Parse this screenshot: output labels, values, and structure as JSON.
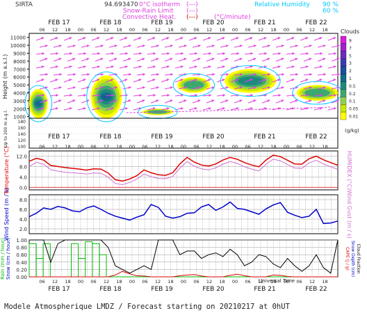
{
  "header": {
    "station": "SIRTA",
    "coords": "94.693470",
    "isotherm_label": "0°C isotherm",
    "snow_rain_label": "Snow-Rain Limit",
    "convective_label": "Convective Heat.",
    "unit_label": "(°C/minute)",
    "rh_label": "Relative Humidity",
    "rh_90": "90 %",
    "rh_60": "60 %",
    "iso_legend": "(---)",
    "snow_legend": "(---)",
    "conv_legend": "(---)"
  },
  "footer": {
    "title": "Modele Atmospherique LMDZ / Forecast starting on 20210217 at 0hUT",
    "universal_time": "Universal Time"
  },
  "colors": {
    "cloud_scale": [
      "#ffff00",
      "#c8e600",
      "#8fd14f",
      "#3da86e",
      "#1e8a7e",
      "#136b8c",
      "#1c4fa0",
      "#3b3bb0",
      "#6a2bbd",
      "#a020c8",
      "#d61ed6"
    ],
    "temperature": "#dd0000",
    "humidex": "#d070d0",
    "wind_speed": "#0000cc",
    "rain": "#00bb00",
    "cape": "#dd0000",
    "cloud_fraction": "#000000",
    "wind_arrow": "#e040e0",
    "rh_contour": "#00c8ff"
  },
  "chart_data": [
    {
      "type": "heatmap",
      "title": "",
      "days": [
        "FEB 17",
        "FEB 18",
        "FEB 19",
        "FEB 20",
        "FEB 21",
        "FEB 22"
      ],
      "hour_ticks": [
        "06",
        "12",
        "18",
        "00",
        "06",
        "12",
        "18",
        "00",
        "06",
        "12",
        "18",
        "00",
        "06",
        "12",
        "18",
        "00",
        "06",
        "12",
        "18",
        "00",
        "06",
        "12",
        "18"
      ],
      "ylabel": "Height (m a.s.l.)",
      "ylabel_low": "Up to 200 m a.g.l.",
      "yticks_upper": [
        11000,
        10000,
        9000,
        8000,
        7000,
        6000,
        5000,
        4000,
        3000,
        2000,
        1000
      ],
      "yticks_lower": [
        180,
        160,
        140,
        120,
        100
      ],
      "colorbar_title": "Clouds",
      "colorbar_unit": "(g/kg)",
      "colorbar_levels": [
        "9",
        "7",
        "5",
        "3",
        "2",
        "1",
        "0.5",
        "0.2",
        "0.1",
        "0.05",
        "0.01"
      ],
      "cloud_patches": [
        {
          "t0": 0,
          "t1": 9,
          "z0": 800,
          "z1": 4500,
          "level": 5
        },
        {
          "t0": 30,
          "t1": 45,
          "z0": 800,
          "z1": 6200,
          "level": 6
        },
        {
          "t0": 55,
          "t1": 70,
          "z0": 1200,
          "z1": 2000,
          "level": 3
        },
        {
          "t0": 72,
          "t1": 88,
          "z0": 4000,
          "z1": 6000,
          "level": 3
        },
        {
          "t0": 95,
          "t1": 120,
          "z0": 4000,
          "z1": 7000,
          "level": 4
        },
        {
          "t0": 130,
          "t1": 150,
          "z0": 3000,
          "z1": 5000,
          "level": 3
        }
      ]
    },
    {
      "type": "line",
      "ylabel_left": "Temperature (°C)",
      "ylabel_right": "HUMIDEX (°C)",
      "yticks": [
        12.0,
        8.0,
        4.0,
        0.0
      ],
      "ylim": [
        -1,
        14
      ],
      "series": [
        {
          "name": "Temperature",
          "values": [
            10.0,
            11.2,
            10.5,
            8.4,
            8.0,
            7.6,
            7.3,
            7.0,
            6.6,
            7.1,
            7.0,
            5.5,
            2.9,
            2.4,
            3.2,
            4.5,
            6.7,
            5.6,
            4.8,
            4.6,
            5.6,
            9.0,
            11.5,
            9.7,
            8.6,
            8.2,
            9.0,
            10.5,
            11.5,
            10.8,
            9.5,
            8.6,
            7.9,
            10.5,
            12.4,
            11.8,
            10.4,
            9.0,
            8.9,
            11.0,
            12.0,
            10.6,
            9.5,
            8.5
          ]
        },
        {
          "name": "HUMIDEX",
          "values": [
            8.0,
            9.6,
            8.9,
            6.8,
            6.2,
            5.8,
            5.6,
            5.4,
            5.1,
            5.5,
            5.4,
            3.9,
            1.5,
            1.0,
            1.9,
            3.2,
            5.1,
            4.1,
            3.4,
            3.3,
            4.2,
            7.4,
            9.9,
            8.1,
            7.1,
            6.7,
            7.5,
            8.9,
            9.9,
            9.2,
            7.9,
            7.0,
            6.3,
            8.9,
            10.8,
            10.2,
            8.8,
            7.4,
            7.3,
            9.4,
            10.4,
            9.0,
            7.9,
            6.9
          ]
        }
      ]
    },
    {
      "type": "line",
      "ylabel_left": "Wind Speed (m / s)",
      "ylabel_right": "Wind Gust (m / s)",
      "yticks": [
        8.0,
        6.0,
        4.0,
        2.0
      ],
      "ylim": [
        1,
        9
      ],
      "series": [
        {
          "name": "Wind Speed",
          "values": [
            4.5,
            5.2,
            6.3,
            6.0,
            6.6,
            6.3,
            5.7,
            5.5,
            6.3,
            6.7,
            6.0,
            5.2,
            4.6,
            4.2,
            3.8,
            4.4,
            4.9,
            7.0,
            6.4,
            4.6,
            4.2,
            4.5,
            5.2,
            5.3,
            6.5,
            7.0,
            5.8,
            6.5,
            7.5,
            6.2,
            6.0,
            5.5,
            5.0,
            6.1,
            6.9,
            7.4,
            5.4,
            4.8,
            4.3,
            4.6,
            6.0,
            3.1,
            3.2,
            3.6
          ]
        }
      ]
    },
    {
      "type": "line",
      "ylabel_left_1": "Rain (mm / hour)",
      "ylabel_left_2": "Snow (cm / hour)",
      "ylabel_right_1": "CAPE (J / g)",
      "ylabel_right_2": "Snow Depth (cm)",
      "ylabel_right_3": "Cloud Fraction",
      "yticks": [
        1.0,
        0.8,
        0.6,
        0.4,
        0.2,
        0.0
      ],
      "ylim": [
        0,
        1
      ],
      "series": [
        {
          "name": "Rain",
          "values": [
            0.9,
            0.5,
            0.9,
            0,
            0,
            0,
            0.9,
            0.5,
            0.95,
            0.9,
            0.6,
            0,
            0,
            0,
            0,
            0,
            0,
            0,
            0,
            0,
            0,
            0,
            0,
            0,
            0,
            0,
            0,
            0,
            0,
            0,
            0,
            0,
            0,
            0,
            0,
            0,
            0,
            0,
            0,
            0,
            0,
            0,
            0,
            0
          ]
        },
        {
          "name": "CAPE",
          "values": [
            0,
            0,
            0,
            0,
            0,
            0,
            0,
            0,
            0,
            0,
            0,
            0,
            0.05,
            0.15,
            0.08,
            0.03,
            0.02,
            0,
            0,
            0,
            0,
            0.03,
            0.05,
            0.06,
            0.02,
            0,
            0,
            0,
            0.04,
            0.07,
            0.03,
            0,
            0,
            0,
            0.05,
            0.04,
            0.01,
            0,
            0,
            0,
            0,
            0,
            0,
            0
          ]
        },
        {
          "name": "Cloud Fraction",
          "values": [
            1.0,
            1.0,
            1.0,
            0.4,
            0.9,
            1.0,
            1.0,
            1.0,
            1.0,
            1.0,
            1.0,
            0.8,
            0.3,
            0.2,
            0.1,
            0.2,
            0.3,
            0.2,
            1.0,
            1.0,
            1.0,
            0.6,
            0.7,
            0.7,
            0.5,
            0.6,
            0.65,
            0.55,
            0.75,
            0.6,
            0.3,
            0.4,
            0.6,
            0.55,
            0.35,
            0.25,
            0.5,
            0.3,
            0.15,
            0.3,
            0.6,
            0.25,
            0.1,
            1.0
          ]
        }
      ]
    }
  ]
}
